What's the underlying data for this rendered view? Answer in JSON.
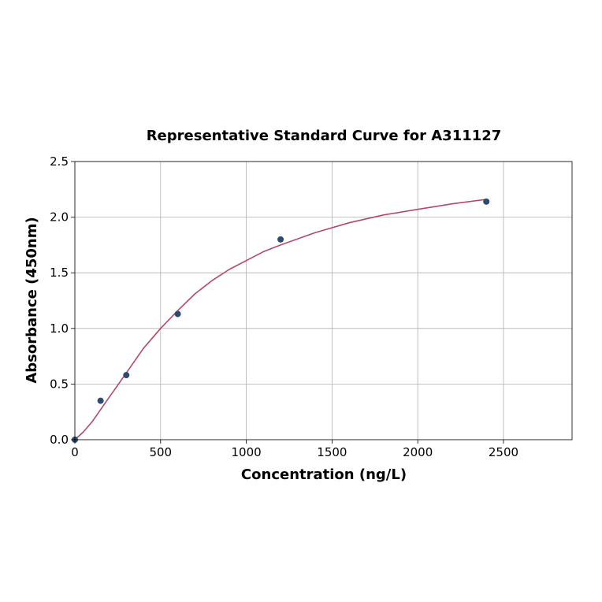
{
  "chart_data": {
    "type": "scatter",
    "title": "Representative Standard Curve for A311127",
    "xlabel": "Concentration (ng/L)",
    "ylabel": "Absorbance (450nm)",
    "xlim": [
      0,
      2900
    ],
    "ylim": [
      0,
      2.5
    ],
    "xticks": [
      0,
      500,
      1000,
      1500,
      2000,
      2500
    ],
    "yticks": [
      0.0,
      0.5,
      1.0,
      1.5,
      2.0,
      2.5
    ],
    "xtick_labels": [
      "0",
      "500",
      "1000",
      "1500",
      "2000",
      "2500"
    ],
    "ytick_labels": [
      "0.0",
      "0.5",
      "1.0",
      "1.5",
      "2.0",
      "2.5"
    ],
    "grid": true,
    "series": [
      {
        "kind": "points",
        "x": [
          0,
          150,
          300,
          600,
          1200,
          2400
        ],
        "y": [
          0.0,
          0.35,
          0.58,
          1.13,
          1.8,
          2.14
        ],
        "color": "#2e4a6e"
      },
      {
        "kind": "fit-curve",
        "x": [
          0,
          50,
          100,
          150,
          200,
          300,
          400,
          500,
          600,
          700,
          800,
          900,
          1000,
          1100,
          1200,
          1400,
          1600,
          1800,
          2000,
          2200,
          2400
        ],
        "y": [
          0.0,
          0.07,
          0.16,
          0.27,
          0.38,
          0.6,
          0.82,
          1.0,
          1.16,
          1.31,
          1.43,
          1.53,
          1.61,
          1.69,
          1.75,
          1.86,
          1.95,
          2.02,
          2.07,
          2.12,
          2.16
        ],
        "color": "#b04a6a"
      }
    ]
  }
}
